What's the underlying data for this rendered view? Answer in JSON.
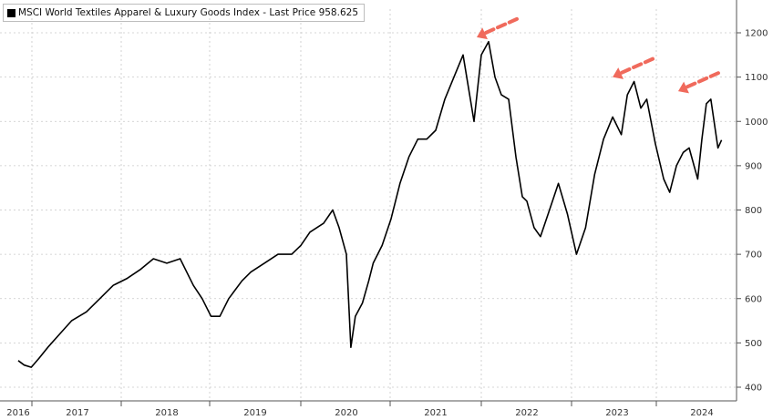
{
  "chart_data": {
    "type": "line",
    "legend": "MSCI World Textiles Apparel & Luxury Goods Index - Last Price 958.625",
    "legend_placement": "top-left",
    "grid": true,
    "colors": {
      "line": "#000000",
      "grid": "#c8c8c8",
      "arrow": "#f06a5c"
    },
    "x_ticks": [
      "2016",
      "2017",
      "2018",
      "2019",
      "2020",
      "2021",
      "2022",
      "2023",
      "2024"
    ],
    "y_ticks": [
      400,
      500,
      600,
      700,
      800,
      900,
      1000,
      1100,
      1200
    ],
    "xlim": [
      2016.0,
      2024.3
    ],
    "ylim": [
      400,
      1250
    ],
    "series": [
      {
        "values_x": [
          2016.0,
          2016.1,
          2016.22,
          2016.35,
          2016.5,
          2016.7,
          2016.9,
          2017.1,
          2017.25,
          2017.4,
          2017.55,
          2017.7,
          2017.85,
          2018.0,
          2018.15,
          2018.3,
          2018.4,
          2018.5,
          2018.6,
          2018.7,
          2018.85,
          2018.95,
          2019.1,
          2019.25,
          2019.4,
          2019.5,
          2019.6,
          2019.75,
          2019.85,
          2019.92,
          2020.0,
          2020.05,
          2020.1,
          2020.18,
          2020.25,
          2020.3,
          2020.4,
          2020.5,
          2020.6,
          2020.7,
          2020.8,
          2020.9,
          2021.0,
          2021.1,
          2021.2,
          2021.3,
          2021.38,
          2021.42,
          2021.5,
          2021.58,
          2021.65,
          2021.72,
          2021.8,
          2021.88,
          2021.95,
          2022.0,
          2022.08,
          2022.15,
          2022.25,
          2022.35,
          2022.45,
          2022.55,
          2022.65,
          2022.75,
          2022.85,
          2022.95,
          2023.05,
          2023.12,
          2023.2,
          2023.28,
          2023.35,
          2023.45,
          2023.55,
          2023.62,
          2023.7,
          2023.78,
          2023.85,
          2023.95,
          2024.0,
          2024.05,
          2024.1,
          2024.18,
          2024.22
        ],
        "values_y": [
          460,
          450,
          445,
          465,
          490,
          520,
          550,
          570,
          600,
          630,
          645,
          665,
          690,
          680,
          690,
          630,
          600,
          560,
          560,
          600,
          640,
          660,
          680,
          700,
          700,
          720,
          750,
          770,
          800,
          760,
          700,
          490,
          560,
          590,
          640,
          680,
          720,
          780,
          860,
          920,
          960,
          960,
          980,
          1050,
          1100,
          1150,
          1050,
          1000,
          1150,
          1180,
          1100,
          1060,
          1050,
          920,
          830,
          820,
          760,
          740,
          800,
          860,
          790,
          700,
          760,
          880,
          960,
          1010,
          970,
          1060,
          1090,
          1030,
          1050,
          950,
          870,
          840,
          900,
          930,
          940,
          870,
          960,
          1040,
          1050,
          940,
          958
        ]
      }
    ],
    "annotations": [
      {
        "type": "arrow",
        "target_x": 2021.45,
        "target_y": 1190
      },
      {
        "type": "arrow",
        "target_x": 2022.95,
        "target_y": 1100
      },
      {
        "type": "arrow",
        "target_x": 2023.72,
        "target_y": 1068
      }
    ]
  }
}
